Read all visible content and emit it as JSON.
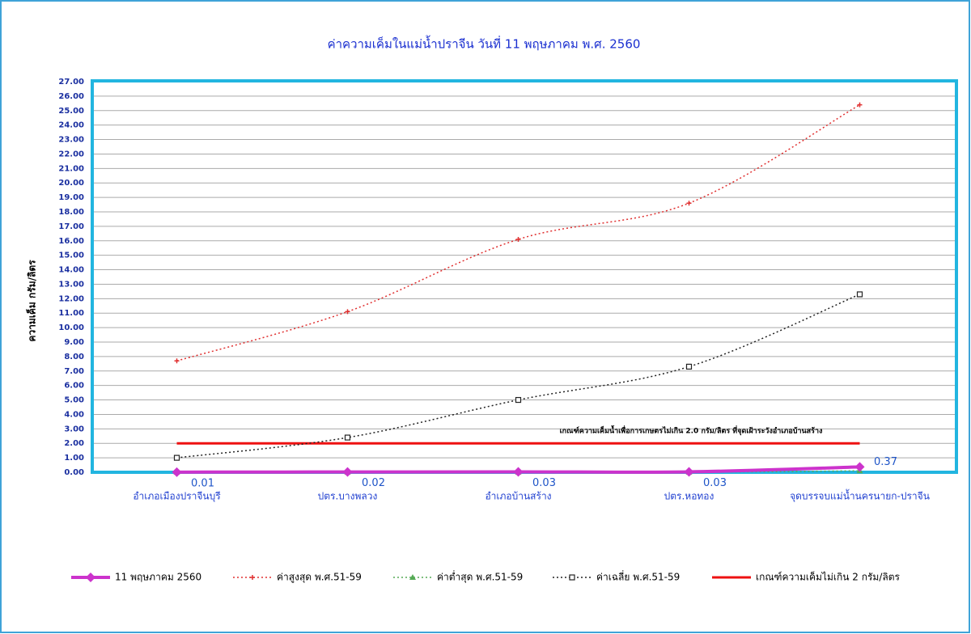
{
  "chart_data": {
    "type": "line",
    "title": "ค่าความเค็มในแม่น้ำปราจีน วันที่ 11 พฤษภาคม พ.ศ. 2560",
    "y_label": "ความเค็ม กรัม/ลิตร",
    "annotation": "เกณฑ์ความเค็มน้ำเพื่อการเกษตรไม่เกิน 2.0 กรัม/ลิตร  ที่จุดเฝ้าระวังอำเภอบ้านสร้าง",
    "categories": [
      "อำเภอเมืองปราจีนบุรี",
      "ปตร.บางพลวง",
      "อำเภอบ้านสร้าง",
      "ปตร.หอทอง",
      "จุดบรรจบแม่น้ำนครนายก-ปราจีน"
    ],
    "series": [
      {
        "name": "11 พฤษภาคม 2560",
        "color": "#cc33cc",
        "values": [
          0.01,
          0.02,
          0.03,
          0.03,
          0.37
        ]
      },
      {
        "name": "ค่าสูงสุด พ.ศ.51-59",
        "color": "#e03030",
        "values": [
          7.7,
          11.1,
          16.1,
          18.6,
          25.4
        ]
      },
      {
        "name": "ค่าต่ำสุด พ.ศ.51-59",
        "color": "#55aa55",
        "values": [
          0.01,
          0.01,
          0.01,
          0.01,
          0.1
        ]
      },
      {
        "name": "ค่าเฉลี่ย  พ.ศ.51-59",
        "color": "#222222",
        "values": [
          1.0,
          2.4,
          5.0,
          7.3,
          12.3
        ]
      },
      {
        "name": "เกณฑ์ความเค็มไม่เกิน 2 กรัม/ลิตร",
        "color": "#ee1111",
        "values": [
          2,
          2,
          2,
          2,
          2
        ]
      }
    ],
    "ylim": [
      0,
      27
    ],
    "yticks": [
      {
        "value": 0,
        "label": "0.00"
      },
      {
        "value": 1,
        "label": "1.00"
      },
      {
        "value": 2,
        "label": "2.00"
      },
      {
        "value": 3,
        "label": "3.00"
      },
      {
        "value": 4,
        "label": "4.00"
      },
      {
        "value": 5,
        "label": "5.00"
      },
      {
        "value": 6,
        "label": "6.00"
      },
      {
        "value": 7,
        "label": "7.00"
      },
      {
        "value": 8,
        "label": "8.00"
      },
      {
        "value": 9,
        "label": "9.00"
      },
      {
        "value": 10,
        "label": "10.00"
      },
      {
        "value": 11,
        "label": "11.00"
      },
      {
        "value": 12,
        "label": "12.00"
      },
      {
        "value": 13,
        "label": "13.00"
      },
      {
        "value": 14,
        "label": "14.00"
      },
      {
        "value": 15,
        "label": "15.00"
      },
      {
        "value": 16,
        "label": "16.00"
      },
      {
        "value": 17,
        "label": "17.00"
      },
      {
        "value": 18,
        "label": "18.00"
      },
      {
        "value": 19,
        "label": "19.00"
      },
      {
        "value": 20,
        "label": "20.00"
      },
      {
        "value": 21,
        "label": "21.00"
      },
      {
        "value": 22,
        "label": "22.00"
      },
      {
        "value": 23,
        "label": "23.00"
      },
      {
        "value": 24,
        "label": "24.00"
      },
      {
        "value": 25,
        "label": "25.00"
      },
      {
        "value": 26,
        "label": "26.00"
      },
      {
        "value": 27,
        "label": "27.00"
      }
    ],
    "grid": true
  }
}
